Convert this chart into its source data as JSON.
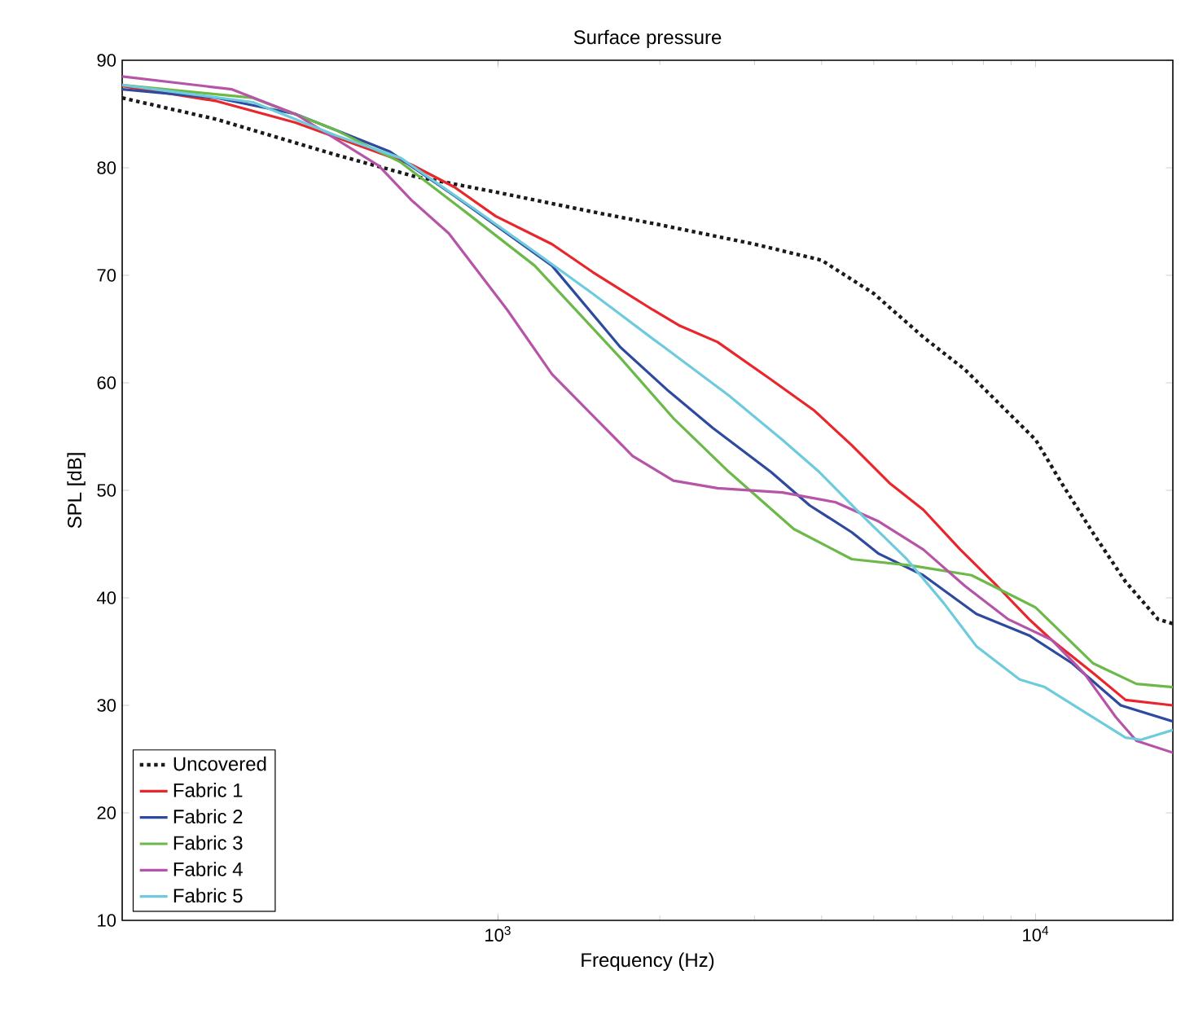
{
  "chart_data": {
    "type": "line",
    "title": "Surface pressure",
    "xlabel": "Frequency (Hz)",
    "ylabel": "SPL [dB]",
    "log": "x",
    "xlim": [
      200,
      18000
    ],
    "ylim": [
      10,
      90
    ],
    "xticks": [
      {
        "value": 1000,
        "label": "10$^{3}$"
      },
      {
        "value": 10000,
        "label": "10$^{4}$"
      }
    ],
    "yticks": [
      10,
      20,
      30,
      40,
      50,
      60,
      70,
      80,
      90
    ],
    "grid": false,
    "legend": "bottom left",
    "marker": "none",
    "series": [
      {
        "name": "Uncovered",
        "color": "#1a1a1a",
        "line_style": "dotted",
        "x": [
          200,
          300,
          500,
          700,
          1000,
          1500,
          2000,
          3000,
          4000,
          5000,
          6200,
          7400,
          8500,
          10000,
          11200,
          12800,
          14700,
          16900,
          18000
        ],
        "values": [
          86.5,
          84.5,
          81.2,
          79.2,
          77.7,
          75.9,
          74.7,
          72.9,
          71.4,
          68.3,
          64.2,
          61.2,
          58.2,
          54.7,
          50.6,
          46,
          41.5,
          38,
          37.6
        ]
      },
      {
        "name": "Fabric 1",
        "color": "#e8262b",
        "line_style": "solid",
        "x": [
          200,
          300,
          420,
          690,
          830,
          990,
          1260,
          1500,
          1940,
          2180,
          2560,
          3220,
          3880,
          4550,
          5370,
          6180,
          7240,
          8480,
          9730,
          10700,
          12800,
          14700,
          18000
        ],
        "values": [
          87.6,
          86.2,
          84.2,
          80.3,
          78.2,
          75.5,
          72.9,
          70.3,
          66.8,
          65.3,
          63.8,
          60.3,
          57.4,
          54.2,
          50.6,
          48.2,
          44.5,
          41.1,
          38,
          36.1,
          33,
          30.5,
          30
        ]
      },
      {
        "name": "Fabric 2",
        "color": "#2d4a9e",
        "line_style": "solid",
        "x": [
          200,
          300,
          420,
          630,
          830,
          1260,
          1690,
          2080,
          2510,
          3220,
          3800,
          4550,
          5110,
          6180,
          7760,
          9730,
          11700,
          14400,
          18000
        ],
        "values": [
          87.3,
          86.5,
          85,
          81.5,
          77.4,
          70.9,
          63.3,
          59.2,
          55.8,
          51.7,
          48.6,
          46.1,
          44.1,
          42.1,
          38.5,
          36.5,
          33.9,
          30,
          28.5
        ]
      },
      {
        "name": "Fabric 3",
        "color": "#6cb94a",
        "line_style": "solid",
        "x": [
          200,
          350,
          500,
          660,
          870,
          1170,
          1690,
          2120,
          2690,
          3550,
          4550,
          5880,
          7600,
          10000,
          12800,
          15400,
          18000
        ],
        "values": [
          87.7,
          86.5,
          83.5,
          80.5,
          75.9,
          70.9,
          62.3,
          56.7,
          51.7,
          46.4,
          43.6,
          43,
          42.1,
          39.1,
          33.9,
          32,
          31.7
        ]
      },
      {
        "name": "Fabric 4",
        "color": "#b655a8",
        "line_style": "solid",
        "x": [
          200,
          320,
          420,
          600,
          690,
          810,
          1040,
          1260,
          1780,
          2120,
          2560,
          3380,
          4240,
          5110,
          6180,
          7390,
          8900,
          10700,
          12300,
          14100,
          15400,
          18000
        ],
        "values": [
          88.5,
          87.3,
          85,
          80.2,
          77,
          73.9,
          66.8,
          60.8,
          53.2,
          50.9,
          50.2,
          49.8,
          48.9,
          47.1,
          44.5,
          41.1,
          38,
          36.1,
          33,
          28.9,
          26.7,
          25.6
        ]
      },
      {
        "name": "Fabric 5",
        "color": "#6ecbdd",
        "line_style": "solid",
        "x": [
          200,
          350,
          500,
          660,
          890,
          1200,
          1500,
          1940,
          2040,
          2690,
          3380,
          3960,
          4770,
          5760,
          6750,
          7760,
          9340,
          10400,
          12500,
          14700,
          15700,
          18000
        ],
        "values": [
          87.7,
          86.1,
          83,
          80.9,
          76.4,
          71.8,
          68.3,
          64.1,
          63.3,
          58.8,
          54.7,
          51.7,
          47.6,
          43.6,
          39.5,
          35.5,
          32.4,
          31.7,
          29.2,
          27,
          26.8,
          27.7
        ]
      }
    ]
  }
}
